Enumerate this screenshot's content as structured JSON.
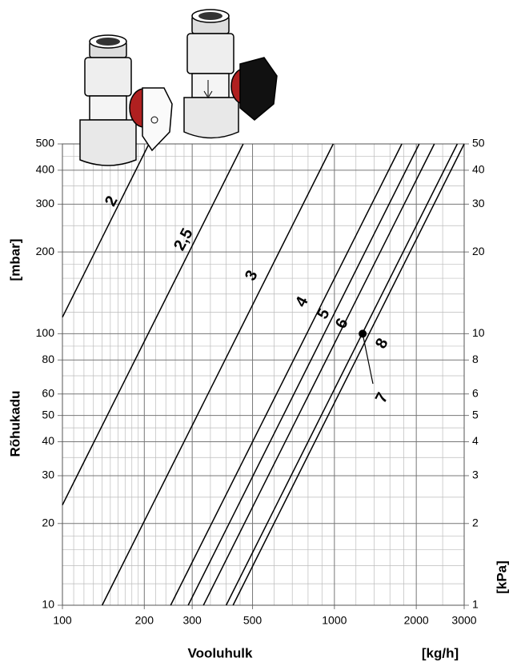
{
  "chart_data": {
    "type": "line",
    "log_x": true,
    "log_y": true,
    "x_label": "Vooluhulk",
    "x_unit": "[kg/h]",
    "y_label": "Rõhukadu",
    "y_unit": "[mbar]",
    "y2_unit": "[kPa]",
    "xlim": [
      100,
      3000
    ],
    "xticks": [
      100,
      200,
      300,
      500,
      1000,
      2000,
      3000
    ],
    "ylim": [
      10,
      500
    ],
    "yticks": [
      10,
      20,
      30,
      40,
      50,
      60,
      80,
      100,
      200,
      300,
      400,
      500
    ],
    "y2lim": [
      1,
      50
    ],
    "y2ticks": [
      1,
      2,
      3,
      4,
      5,
      6,
      8,
      10,
      20,
      30,
      40,
      50
    ],
    "x_minor_grid": [
      110,
      120,
      130,
      140,
      150,
      160,
      170,
      180,
      190,
      220,
      240,
      260,
      280,
      350,
      400,
      450,
      600,
      700,
      800,
      900,
      1200,
      1400,
      1600,
      1800,
      2500
    ],
    "y_minor_grid": [
      12,
      14,
      16,
      18,
      25,
      35,
      45,
      70,
      90,
      120,
      140,
      160,
      180,
      250,
      350,
      450
    ],
    "grid": true,
    "series": [
      {
        "name": "2",
        "color": "#000000",
        "x": [
          100,
          208
        ],
        "values": [
          115,
          500
        ]
      },
      {
        "name": "2,5",
        "color": "#000000",
        "x": [
          100,
          462
        ],
        "values": [
          23.4,
          500
        ]
      },
      {
        "name": "3",
        "color": "#000000",
        "x": [
          140,
          990
        ],
        "values": [
          10,
          500
        ]
      },
      {
        "name": "4",
        "color": "#000000",
        "x": [
          250,
          1770
        ],
        "values": [
          10,
          500
        ]
      },
      {
        "name": "5",
        "color": "#000000",
        "x": [
          290,
          2050
        ],
        "values": [
          10,
          500
        ]
      },
      {
        "name": "6",
        "color": "#000000",
        "x": [
          330,
          2330
        ],
        "values": [
          10,
          500
        ]
      },
      {
        "name": "7",
        "color": "#000000",
        "x": [
          400,
          2830
        ],
        "values": [
          10,
          500
        ]
      },
      {
        "name": "8",
        "color": "#000000",
        "x": [
          424,
          3000
        ],
        "values": [
          10,
          500
        ]
      }
    ],
    "marker": {
      "x": 1270,
      "y": 100
    }
  }
}
